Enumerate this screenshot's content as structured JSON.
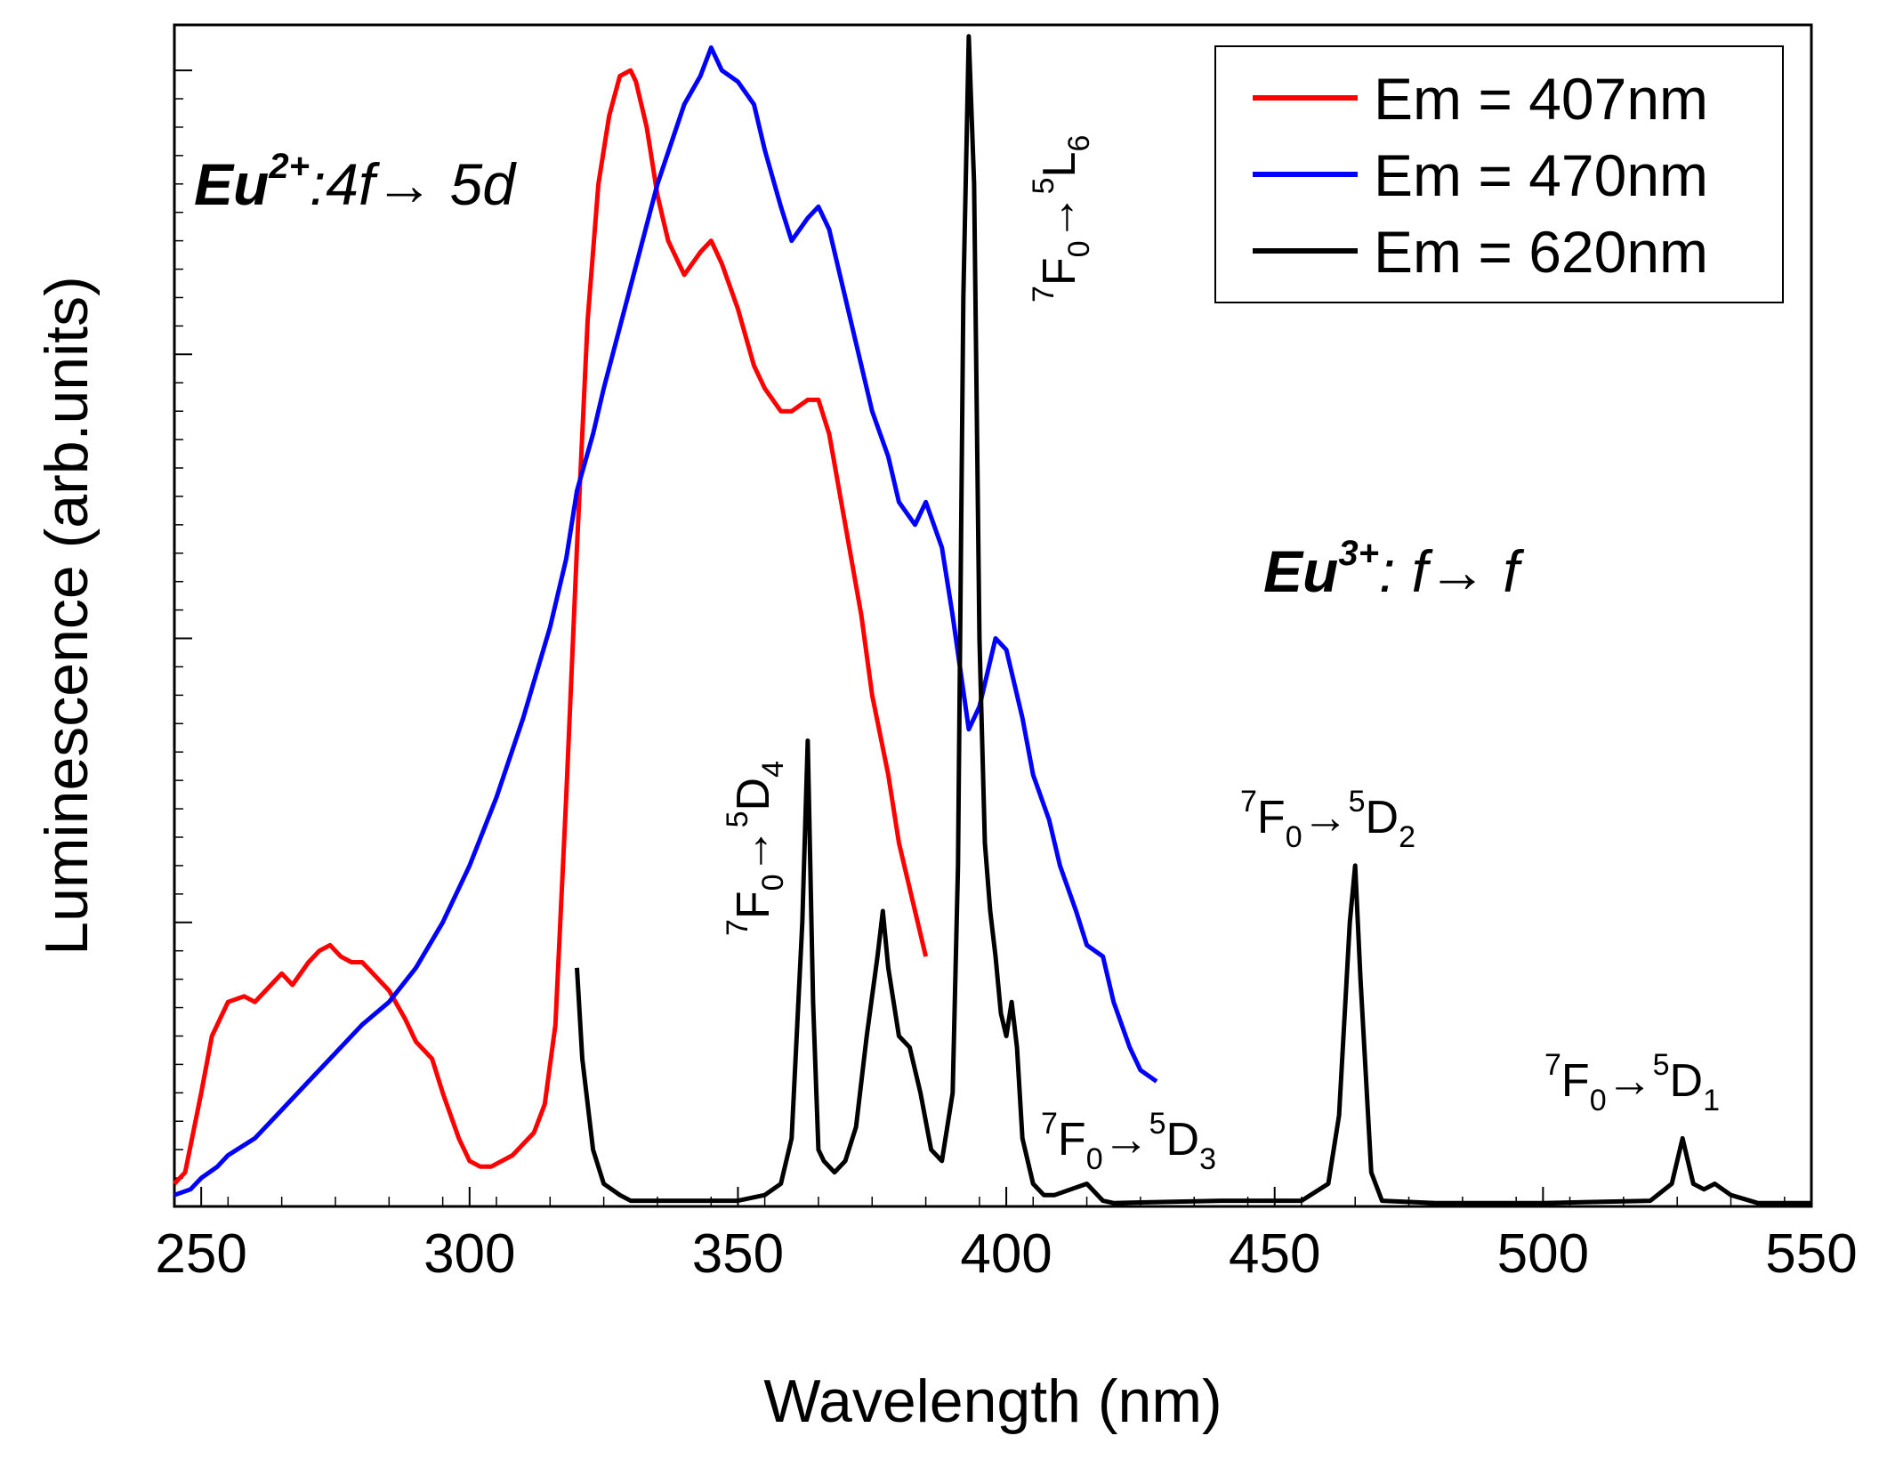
{
  "chart_data": {
    "type": "line",
    "xlabel": "Wavelength (nm)",
    "ylabel": "Luminescence (arb.units)",
    "xlim": [
      245,
      550
    ],
    "ylim": [
      0,
      1.04
    ],
    "xticks": [
      "250",
      "300",
      "350",
      "400",
      "450",
      "500",
      "550"
    ],
    "xtick_values": [
      250,
      300,
      350,
      400,
      450,
      500,
      550
    ],
    "yticks_labeled": false,
    "grid": false,
    "legend_position": "top-right",
    "series": [
      {
        "name": "Em = 407nm",
        "color": "#ff0000",
        "x": [
          245,
          247,
          250,
          252,
          255,
          258,
          260,
          263,
          265,
          267,
          270,
          272,
          274,
          276,
          278,
          280,
          282,
          285,
          288,
          290,
          293,
          295,
          298,
          300,
          302,
          304,
          306,
          308,
          310,
          312,
          314,
          316,
          318,
          320,
          322,
          324,
          326,
          328,
          330,
          331,
          333,
          335,
          337,
          340,
          343,
          345,
          347,
          350,
          353,
          355,
          358,
          360,
          363,
          365,
          367,
          370,
          373,
          375,
          378,
          380,
          383,
          385
        ],
        "y": [
          0.02,
          0.03,
          0.1,
          0.15,
          0.18,
          0.185,
          0.18,
          0.195,
          0.205,
          0.195,
          0.215,
          0.225,
          0.23,
          0.22,
          0.215,
          0.215,
          0.205,
          0.19,
          0.165,
          0.145,
          0.13,
          0.1,
          0.06,
          0.04,
          0.035,
          0.035,
          0.04,
          0.045,
          0.055,
          0.065,
          0.09,
          0.16,
          0.36,
          0.58,
          0.78,
          0.9,
          0.96,
          0.995,
          1.0,
          0.99,
          0.95,
          0.89,
          0.85,
          0.82,
          0.84,
          0.85,
          0.83,
          0.79,
          0.74,
          0.72,
          0.7,
          0.7,
          0.71,
          0.71,
          0.68,
          0.6,
          0.52,
          0.45,
          0.38,
          0.32,
          0.26,
          0.22
        ]
      },
      {
        "name": "Em = 470nm",
        "color": "#0000ff",
        "x": [
          245,
          248,
          250,
          253,
          255,
          260,
          265,
          270,
          275,
          280,
          285,
          290,
          295,
          300,
          305,
          310,
          315,
          318,
          320,
          323,
          325,
          330,
          335,
          340,
          343,
          345,
          347,
          350,
          353,
          355,
          358,
          360,
          363,
          365,
          367,
          370,
          373,
          375,
          378,
          380,
          383,
          385,
          388,
          390,
          393,
          395,
          398,
          400,
          403,
          405,
          408,
          410,
          413,
          415,
          418,
          420,
          423,
          425,
          428
        ],
        "y": [
          0.01,
          0.015,
          0.025,
          0.035,
          0.045,
          0.06,
          0.085,
          0.11,
          0.135,
          0.16,
          0.18,
          0.21,
          0.25,
          0.3,
          0.36,
          0.43,
          0.51,
          0.57,
          0.63,
          0.68,
          0.72,
          0.81,
          0.9,
          0.97,
          0.995,
          1.02,
          1.0,
          0.99,
          0.97,
          0.93,
          0.88,
          0.85,
          0.87,
          0.88,
          0.86,
          0.8,
          0.74,
          0.7,
          0.66,
          0.62,
          0.6,
          0.62,
          0.58,
          0.52,
          0.42,
          0.44,
          0.5,
          0.49,
          0.43,
          0.38,
          0.34,
          0.3,
          0.26,
          0.23,
          0.22,
          0.18,
          0.14,
          0.12,
          0.11
        ]
      },
      {
        "name": "Em = 620nm",
        "color": "#000000",
        "x": [
          320,
          321,
          323,
          325,
          328,
          330,
          340,
          350,
          355,
          358,
          360,
          362,
          363,
          364,
          365,
          366,
          368,
          370,
          372,
          374,
          376,
          377,
          378,
          380,
          382,
          384,
          386,
          388,
          390,
          391,
          392,
          393,
          394,
          395,
          396,
          397,
          398,
          399,
          400,
          401,
          402,
          403,
          405,
          407,
          409,
          412,
          415,
          418,
          420,
          440,
          455,
          460,
          462,
          464,
          465,
          466,
          468,
          470,
          480,
          500,
          520,
          524,
          526,
          527,
          528,
          530,
          532,
          535,
          540,
          550
        ],
        "y": [
          0.21,
          0.13,
          0.05,
          0.02,
          0.01,
          0.005,
          0.005,
          0.005,
          0.01,
          0.02,
          0.06,
          0.25,
          0.41,
          0.18,
          0.05,
          0.04,
          0.03,
          0.04,
          0.07,
          0.15,
          0.22,
          0.26,
          0.21,
          0.15,
          0.14,
          0.1,
          0.05,
          0.04,
          0.1,
          0.3,
          0.8,
          1.03,
          0.9,
          0.5,
          0.32,
          0.26,
          0.22,
          0.17,
          0.15,
          0.18,
          0.14,
          0.06,
          0.02,
          0.01,
          0.01,
          0.015,
          0.02,
          0.005,
          0.003,
          0.005,
          0.005,
          0.02,
          0.08,
          0.25,
          0.3,
          0.2,
          0.03,
          0.005,
          0.003,
          0.003,
          0.005,
          0.02,
          0.06,
          0.04,
          0.02,
          0.015,
          0.02,
          0.01,
          0.003,
          0.003
        ]
      }
    ],
    "group_labels": [
      {
        "id": "eu2",
        "pre": "Eu",
        "sup": "2+",
        "post": ":4f→ 5d"
      },
      {
        "id": "eu3",
        "pre": "Eu",
        "sup": "3+",
        "post": ": f→ f"
      }
    ],
    "annotations": [
      {
        "id": "d4",
        "text": "7F0→5D4",
        "parts": [
          "7",
          "F",
          "0",
          "→",
          "5",
          "D",
          "4"
        ]
      },
      {
        "id": "l6",
        "text": "7F0→5L6",
        "parts": [
          "7",
          "F",
          "0",
          "→",
          "5",
          "L",
          "6"
        ]
      },
      {
        "id": "d3",
        "text": "7F0→5D3",
        "parts": [
          "7",
          "F",
          "0",
          "→",
          "5",
          "D",
          "3"
        ]
      },
      {
        "id": "d2",
        "text": "7F0→5D2",
        "parts": [
          "7",
          "F",
          "0",
          "→",
          "5",
          "D",
          "2"
        ]
      },
      {
        "id": "d1",
        "text": "7F0→5D1",
        "parts": [
          "7",
          "F",
          "0",
          "→",
          "5",
          "D",
          "1"
        ]
      }
    ]
  }
}
